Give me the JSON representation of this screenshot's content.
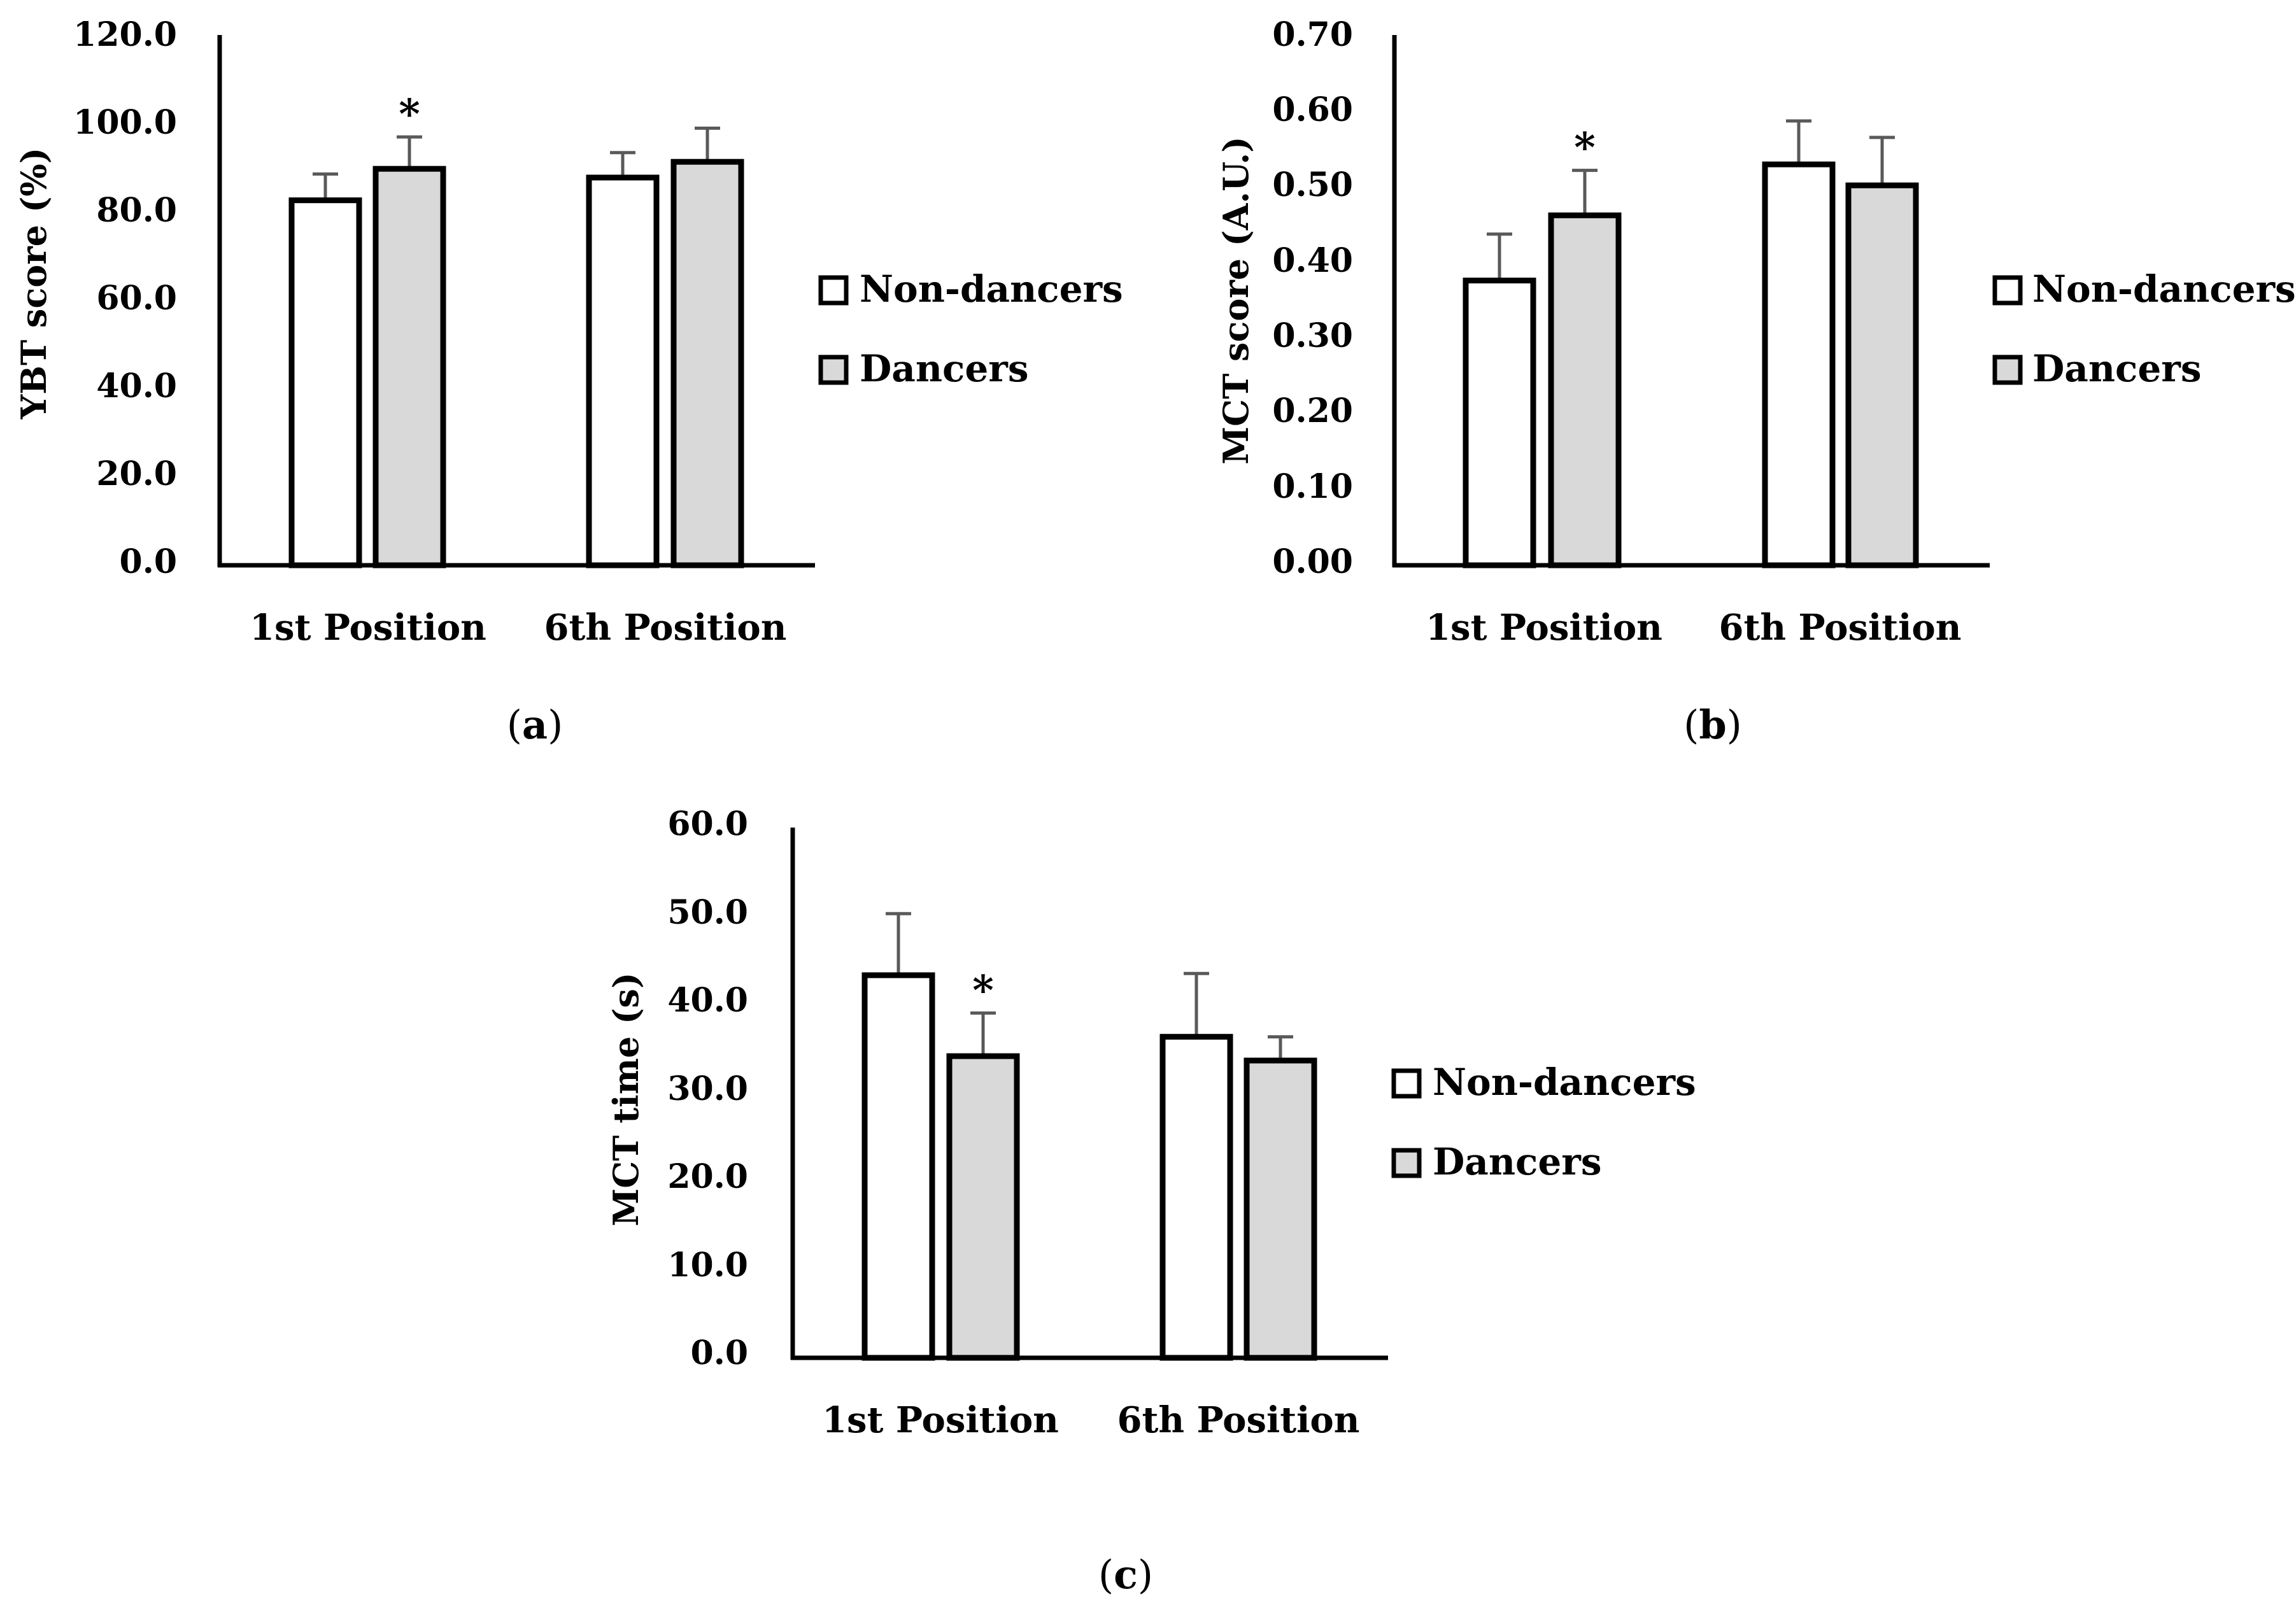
{
  "legend": {
    "non_dancers": "Non-dancers",
    "dancers": "Dancers"
  },
  "colors": {
    "non_dancers_fill": "#ffffff",
    "dancers_fill": "#d9d9d9",
    "outline": "#000000",
    "error_bar": "#595959"
  },
  "significance_marker": "*",
  "chart_data": [
    {
      "id": "a",
      "panel_label": "a",
      "type": "bar",
      "ylabel": "YBT score (%)",
      "ylim": [
        0,
        120
      ],
      "ytick_labels": [
        "0.0",
        "20.0",
        "40.0",
        "60.0",
        "80.0",
        "100.0",
        "120.0"
      ],
      "categories": [
        "1st Position",
        "6th Position"
      ],
      "series": [
        {
          "name": "Non-dancers",
          "values": [
            83.5,
            88.7
          ],
          "errors": [
            6.0,
            5.7
          ]
        },
        {
          "name": "Dancers",
          "values": [
            90.7,
            92.3
          ],
          "errors": [
            7.3,
            7.7
          ]
        }
      ],
      "significance": [
        {
          "category": 0,
          "series": 1
        }
      ]
    },
    {
      "id": "b",
      "panel_label": "b",
      "type": "bar",
      "ylabel": "MCT score (A.U.)",
      "ylim": [
        0,
        0.7
      ],
      "ytick_labels": [
        "0.00",
        "0.10",
        "0.20",
        "0.30",
        "0.40",
        "0.50",
        "0.60",
        "0.70"
      ],
      "categories": [
        "1st Position",
        "6th Position"
      ],
      "series": [
        {
          "name": "Non-dancers",
          "values": [
            0.38,
            0.535
          ],
          "errors": [
            0.062,
            0.058
          ]
        },
        {
          "name": "Dancers",
          "values": [
            0.467,
            0.507
          ],
          "errors": [
            0.06,
            0.064
          ]
        }
      ],
      "significance": [
        {
          "category": 0,
          "series": 1
        }
      ]
    },
    {
      "id": "c",
      "panel_label": "c",
      "type": "bar",
      "ylabel": "MCT time (s)",
      "ylim": [
        0,
        60
      ],
      "ytick_labels": [
        "0.0",
        "10.0",
        "20.0",
        "30.0",
        "40.0",
        "50.0",
        "60.0"
      ],
      "categories": [
        "1st Position",
        "6th Position"
      ],
      "series": [
        {
          "name": "Non-dancers",
          "values": [
            43.5,
            36.5
          ],
          "errors": [
            7.0,
            7.2
          ]
        },
        {
          "name": "Dancers",
          "values": [
            34.3,
            33.8
          ],
          "errors": [
            4.9,
            2.7
          ]
        }
      ],
      "significance": [
        {
          "category": 0,
          "series": 1
        }
      ]
    }
  ]
}
